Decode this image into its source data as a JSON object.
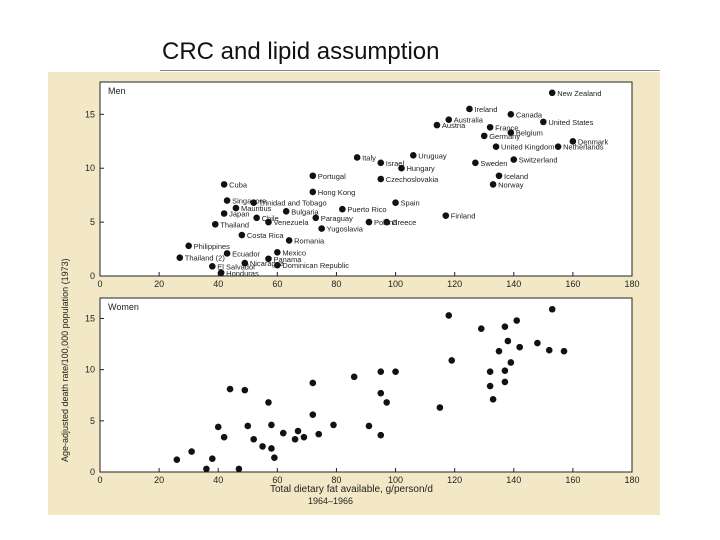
{
  "slide": {
    "title": "CRC and lipid assumption"
  },
  "chart_data": [
    {
      "type": "scatter",
      "panel": "Men",
      "xlabel": "",
      "ylabel": "Age-adjusted death rate/100,000 population (1973)",
      "xlim": [
        0,
        180
      ],
      "ylim": [
        0,
        18
      ],
      "xticks": [
        0,
        20,
        40,
        60,
        80,
        100,
        120,
        140,
        160,
        180
      ],
      "yticks": [
        0,
        5,
        10,
        15
      ],
      "points": [
        {
          "label": "New Zealand",
          "x": 153,
          "y": 17
        },
        {
          "label": "Ireland",
          "x": 125,
          "y": 15.5
        },
        {
          "label": "Canada",
          "x": 139,
          "y": 15
        },
        {
          "label": "Australia",
          "x": 118,
          "y": 14.5
        },
        {
          "label": "United States",
          "x": 150,
          "y": 14.3
        },
        {
          "label": "France",
          "x": 132,
          "y": 13.8
        },
        {
          "label": "Austria",
          "x": 114,
          "y": 14
        },
        {
          "label": "Belgium",
          "x": 139,
          "y": 13.3
        },
        {
          "label": "Germany",
          "x": 130,
          "y": 13
        },
        {
          "label": "Denmark",
          "x": 160,
          "y": 12.5
        },
        {
          "label": "Netherlands",
          "x": 155,
          "y": 12
        },
        {
          "label": "United Kingdom",
          "x": 134,
          "y": 12
        },
        {
          "label": "Italy",
          "x": 87,
          "y": 11
        },
        {
          "label": "Israel",
          "x": 95,
          "y": 10.5
        },
        {
          "label": "Uruguay",
          "x": 106,
          "y": 11.2
        },
        {
          "label": "Switzerland",
          "x": 140,
          "y": 10.8
        },
        {
          "label": "Sweden",
          "x": 127,
          "y": 10.5
        },
        {
          "label": "Hungary",
          "x": 102,
          "y": 10
        },
        {
          "label": "Iceland",
          "x": 135,
          "y": 9.3
        },
        {
          "label": "Portugal",
          "x": 72,
          "y": 9.3
        },
        {
          "label": "Czechoslovakia",
          "x": 95,
          "y": 9
        },
        {
          "label": "Norway",
          "x": 133,
          "y": 8.5
        },
        {
          "label": "Cuba",
          "x": 42,
          "y": 8.5
        },
        {
          "label": "Hong Kong",
          "x": 72,
          "y": 7.8
        },
        {
          "label": "Singapore",
          "x": 43,
          "y": 7
        },
        {
          "label": "Trinidad and Tobago",
          "x": 52,
          "y": 6.8
        },
        {
          "label": "Spain",
          "x": 100,
          "y": 6.8
        },
        {
          "label": "Mauritius",
          "x": 46,
          "y": 6.3
        },
        {
          "label": "Puerto Rico",
          "x": 82,
          "y": 6.2
        },
        {
          "label": "Bulgaria",
          "x": 63,
          "y": 6
        },
        {
          "label": "Finland",
          "x": 117,
          "y": 5.6
        },
        {
          "label": "Japan",
          "x": 42,
          "y": 5.8
        },
        {
          "label": "Chile",
          "x": 53,
          "y": 5.4
        },
        {
          "label": "Paraguay",
          "x": 73,
          "y": 5.4
        },
        {
          "label": "Venezuela",
          "x": 57,
          "y": 5
        },
        {
          "label": "Greece",
          "x": 97,
          "y": 5
        },
        {
          "label": "Thailand",
          "x": 39,
          "y": 4.8
        },
        {
          "label": "Yugoslavia",
          "x": 75,
          "y": 4.4
        },
        {
          "label": "Poland",
          "x": 91,
          "y": 5
        },
        {
          "label": "Costa Rica",
          "x": 48,
          "y": 3.8
        },
        {
          "label": "Romania",
          "x": 64,
          "y": 3.3
        },
        {
          "label": "Philippines",
          "x": 30,
          "y": 2.8
        },
        {
          "label": "Mexico",
          "x": 60,
          "y": 2.2
        },
        {
          "label": "Ecuador",
          "x": 43,
          "y": 2.1
        },
        {
          "label": "Panama",
          "x": 57,
          "y": 1.6
        },
        {
          "label": "Thailand (2)",
          "x": 27,
          "y": 1.7
        },
        {
          "label": "El Salvador",
          "x": 38,
          "y": 0.9
        },
        {
          "label": "Dominican Republic",
          "x": 60,
          "y": 1
        },
        {
          "label": "Nicaragua",
          "x": 49,
          "y": 1.2
        },
        {
          "label": "Honduras",
          "x": 41,
          "y": 0.3
        }
      ]
    },
    {
      "type": "scatter",
      "panel": "Women",
      "xlabel": "Total dietary fat available, g/person/d",
      "xlabel_sub": "1964–1966",
      "ylabel": "",
      "xlim": [
        0,
        180
      ],
      "ylim": [
        0,
        17
      ],
      "xticks": [
        0,
        20,
        40,
        60,
        80,
        100,
        120,
        140,
        160,
        180
      ],
      "yticks": [
        0,
        5,
        10,
        15
      ],
      "points": [
        {
          "x": 26,
          "y": 1.2
        },
        {
          "x": 31,
          "y": 2
        },
        {
          "x": 36,
          "y": 0.3
        },
        {
          "x": 38,
          "y": 1.3
        },
        {
          "x": 40,
          "y": 4.4
        },
        {
          "x": 42,
          "y": 3.4
        },
        {
          "x": 44,
          "y": 8.1
        },
        {
          "x": 49,
          "y": 8
        },
        {
          "x": 47,
          "y": 0.3
        },
        {
          "x": 50,
          "y": 4.5
        },
        {
          "x": 52,
          "y": 3.2
        },
        {
          "x": 55,
          "y": 2.5
        },
        {
          "x": 57,
          "y": 6.8
        },
        {
          "x": 58,
          "y": 4.6
        },
        {
          "x": 58,
          "y": 2.3
        },
        {
          "x": 59,
          "y": 1.4
        },
        {
          "x": 62,
          "y": 3.8
        },
        {
          "x": 66,
          "y": 3.2
        },
        {
          "x": 67,
          "y": 4
        },
        {
          "x": 69,
          "y": 3.4
        },
        {
          "x": 72,
          "y": 8.7
        },
        {
          "x": 72,
          "y": 5.6
        },
        {
          "x": 74,
          "y": 3.7
        },
        {
          "x": 79,
          "y": 4.6
        },
        {
          "x": 86,
          "y": 9.3
        },
        {
          "x": 91,
          "y": 4.5
        },
        {
          "x": 95,
          "y": 7.7
        },
        {
          "x": 95,
          "y": 9.8
        },
        {
          "x": 95,
          "y": 3.6
        },
        {
          "x": 97,
          "y": 6.8
        },
        {
          "x": 100,
          "y": 9.8
        },
        {
          "x": 115,
          "y": 6.3
        },
        {
          "x": 118,
          "y": 15.3
        },
        {
          "x": 119,
          "y": 10.9
        },
        {
          "x": 129,
          "y": 14
        },
        {
          "x": 132,
          "y": 9.8
        },
        {
          "x": 132,
          "y": 8.4
        },
        {
          "x": 133,
          "y": 7.1
        },
        {
          "x": 135,
          "y": 11.8
        },
        {
          "x": 137,
          "y": 14.2
        },
        {
          "x": 137,
          "y": 9.9
        },
        {
          "x": 137,
          "y": 8.8
        },
        {
          "x": 138,
          "y": 12.8
        },
        {
          "x": 139,
          "y": 10.7
        },
        {
          "x": 141,
          "y": 14.8
        },
        {
          "x": 142,
          "y": 12.2
        },
        {
          "x": 148,
          "y": 12.6
        },
        {
          "x": 152,
          "y": 11.9
        },
        {
          "x": 153,
          "y": 15.9
        },
        {
          "x": 157,
          "y": 11.8
        }
      ]
    }
  ]
}
